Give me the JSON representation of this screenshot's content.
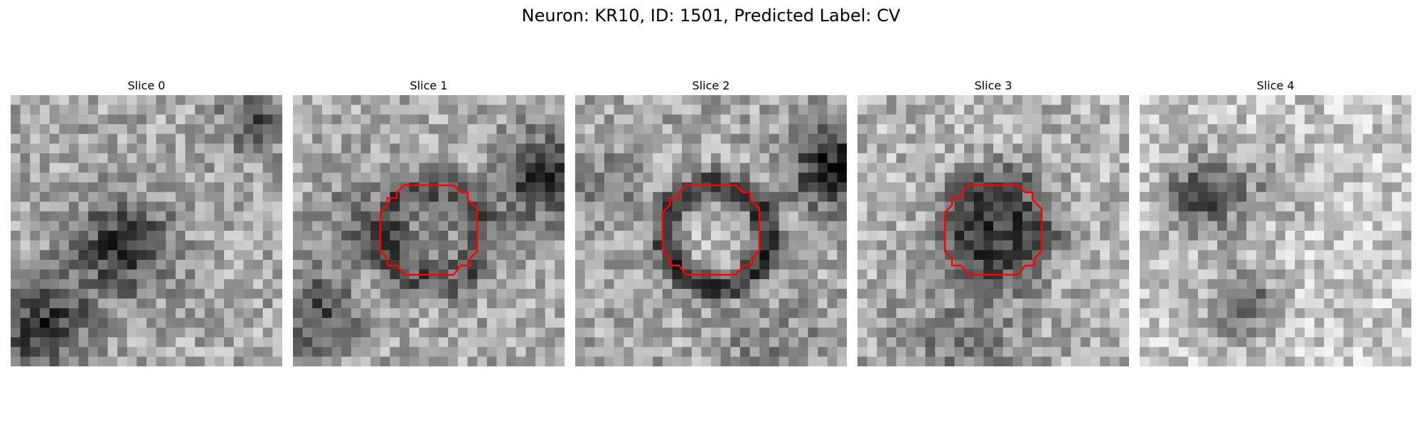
{
  "figure": {
    "title": "Neuron: KR10, ID: 1501, Predicted Label: CV"
  },
  "colors": {
    "contour": "#ff0000",
    "colormap": "gray"
  },
  "panels": [
    {
      "title": "Slice 0",
      "has_contour": false
    },
    {
      "title": "Slice 1",
      "has_contour": true
    },
    {
      "title": "Slice 2",
      "has_contour": true
    },
    {
      "title": "Slice 3",
      "has_contour": true
    },
    {
      "title": "Slice 4",
      "has_contour": false
    }
  ]
}
